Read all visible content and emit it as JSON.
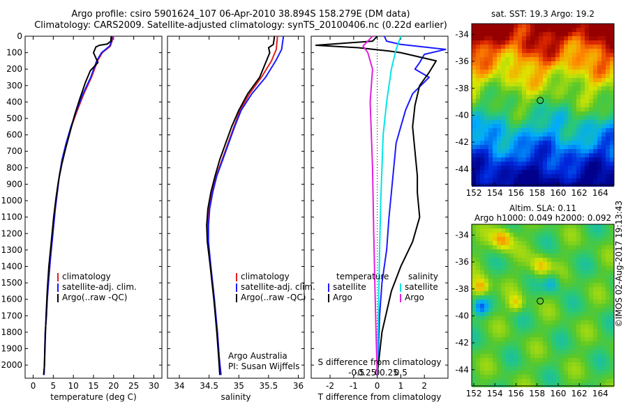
{
  "header": {
    "title_line1": "Argo profile: csiro 5901624_107 06-Apr-2010 38.894S 158.279E (DM data)",
    "title_line2": "Climatology: CARS2009. Satellite-adjusted climatology: synTS_20100406.nc (0.22d earlier)"
  },
  "colors": {
    "climatology": "#e02020",
    "satellite": "#1a1aff",
    "argo": "#000000",
    "sat_salinity": "#00e5e5",
    "argo_salinity": "#e020e0"
  },
  "panels": {
    "temperature": {
      "xlabel": "temperature (deg C)",
      "legend": [
        "climatology",
        "satellite-adj. clim.",
        "Argo(..raw -QC)"
      ]
    },
    "salinity": {
      "xlabel": "salinity",
      "legend": [
        "climatology",
        "satellite-adj. clim.",
        "Argo(..raw -QC)"
      ],
      "credit_line1": "Argo Australia",
      "credit_line2": "PI: Susan Wijffels"
    },
    "difference": {
      "top_label": "S difference from climatology",
      "xlabel": "T difference from climatology",
      "legend_temperature": {
        "title": "temperature",
        "items": [
          "satellite",
          "Argo"
        ]
      },
      "legend_salinity": {
        "title": "salinity",
        "items": [
          "satellite",
          "Argo"
        ]
      }
    }
  },
  "maps": {
    "sst": {
      "title": "sat. SST: 19.3 Argo: 19.2",
      "marker_lat": -38.9,
      "marker_lon": 158.3
    },
    "sla": {
      "title_line1": "Altim. SLA: 0.11",
      "title_line2": "Argo h1000: 0.049 h2000: 0.092",
      "marker_lat": -38.9,
      "marker_lon": 158.3
    },
    "lon_ticks": [
      "152",
      "154",
      "156",
      "158",
      "160",
      "162",
      "164"
    ],
    "lat_ticks": [
      "-34",
      "-36",
      "-38",
      "-40",
      "-42",
      "-44"
    ]
  },
  "stamp": "©IMOS 02-Aug-2017 19:13:43",
  "chart_data": [
    {
      "type": "line",
      "panel": "temperature",
      "ylabel": "",
      "xlabel": "temperature (deg C)",
      "xlim": [
        -2,
        32
      ],
      "ylim": [
        2080,
        0
      ],
      "y_inverted": true,
      "x_ticks": [
        "0",
        "5",
        "10",
        "15",
        "20",
        "25",
        "30"
      ],
      "x_tick_values": [
        0,
        5,
        10,
        15,
        20,
        25,
        30
      ],
      "y_ticks": [
        "0",
        "100",
        "200",
        "300",
        "400",
        "500",
        "600",
        "700",
        "800",
        "900",
        "1000",
        "1100",
        "1200",
        "1300",
        "1400",
        "1500",
        "1600",
        "1700",
        "1800",
        "1900",
        "2000"
      ],
      "series": [
        {
          "name": "climatology",
          "color": "#e02020",
          "x": [
            20.0,
            19.6,
            19.2,
            17.2,
            16.0,
            14.5,
            12.6,
            11.0,
            9.5,
            8.3,
            7.2,
            6.5,
            6.0,
            5.5,
            4.9,
            4.3,
            3.8,
            3.5,
            3.3,
            3.0,
            2.9,
            2.8,
            2.7
          ],
          "y": [
            0,
            30,
            60,
            100,
            150,
            250,
            350,
            450,
            550,
            650,
            750,
            850,
            950,
            1050,
            1200,
            1350,
            1500,
            1600,
            1700,
            1800,
            1900,
            2000,
            2060
          ]
        },
        {
          "name": "satellite-adj. clim.",
          "color": "#1a1aff",
          "x": [
            19.6,
            19.5,
            19.0,
            17.0,
            15.8,
            14.3,
            12.4,
            10.8,
            9.4,
            8.2,
            7.2,
            6.5,
            6.0,
            5.5,
            4.9,
            4.3,
            3.8,
            3.5,
            3.3,
            3.0,
            2.9,
            2.8,
            2.7
          ],
          "y": [
            0,
            30,
            60,
            100,
            150,
            250,
            350,
            450,
            550,
            650,
            750,
            850,
            950,
            1050,
            1200,
            1350,
            1500,
            1600,
            1700,
            1800,
            1900,
            2000,
            2060
          ]
        },
        {
          "name": "Argo(..raw -QC)",
          "color": "#000000",
          "x": [
            19.4,
            19.3,
            18.4,
            16.5,
            15.6,
            15.0,
            16.1,
            14.2,
            13.0,
            11.6,
            10.3,
            9.2,
            8.1,
            7.1,
            6.3,
            5.7,
            5.1,
            4.5,
            3.9,
            3.5,
            3.2,
            3.0,
            2.8,
            2.6
          ],
          "y": [
            0,
            30,
            48,
            55,
            65,
            100,
            160,
            210,
            280,
            380,
            480,
            580,
            680,
            780,
            880,
            980,
            1100,
            1250,
            1400,
            1550,
            1700,
            1850,
            2000,
            2060
          ]
        }
      ]
    },
    {
      "type": "line",
      "panel": "salinity",
      "xlabel": "salinity",
      "xlim": [
        33.8,
        36.1
      ],
      "ylim": [
        2080,
        0
      ],
      "y_inverted": true,
      "x_ticks": [
        "34",
        "34.5",
        "35",
        "35.5",
        "36"
      ],
      "x_tick_values": [
        34,
        34.5,
        35,
        35.5,
        36
      ],
      "series": [
        {
          "name": "climatology",
          "color": "#e02020",
          "x": [
            35.65,
            35.63,
            35.55,
            35.38,
            35.18,
            35.02,
            34.92,
            34.82,
            34.72,
            34.62,
            34.55,
            34.5,
            34.48,
            34.48,
            34.52,
            34.58,
            34.64,
            34.67,
            34.7
          ],
          "y": [
            0,
            80,
            150,
            250,
            350,
            450,
            550,
            650,
            750,
            850,
            950,
            1050,
            1150,
            1250,
            1400,
            1600,
            1800,
            1950,
            2060
          ]
        },
        {
          "name": "satellite-adj. clim.",
          "color": "#1a1aff",
          "x": [
            35.75,
            35.72,
            35.62,
            35.45,
            35.22,
            35.04,
            34.93,
            34.83,
            34.73,
            34.63,
            34.56,
            34.51,
            34.49,
            34.49,
            34.53,
            34.59,
            34.64,
            34.67,
            34.7
          ],
          "y": [
            0,
            80,
            150,
            250,
            350,
            450,
            550,
            650,
            750,
            850,
            950,
            1050,
            1150,
            1250,
            1400,
            1600,
            1800,
            1950,
            2060
          ]
        },
        {
          "name": "Argo(..raw -QC)",
          "color": "#000000",
          "x": [
            35.6,
            35.58,
            35.5,
            35.52,
            35.35,
            35.15,
            35.0,
            34.88,
            34.78,
            34.68,
            34.6,
            34.53,
            34.48,
            34.46,
            34.47,
            34.52,
            34.58,
            34.63,
            34.66,
            34.68
          ],
          "y": [
            0,
            50,
            70,
            100,
            250,
            350,
            450,
            550,
            650,
            750,
            850,
            950,
            1050,
            1150,
            1250,
            1400,
            1600,
            1800,
            1950,
            2060
          ]
        }
      ]
    },
    {
      "type": "line",
      "panel": "difference",
      "xlabel": "T difference from climatology",
      "top_label": "S difference from climatology",
      "xlim": [
        -2.8,
        3.0
      ],
      "ylim": [
        2080,
        0
      ],
      "y_inverted": true,
      "x_ticks": [
        "-2",
        "-1",
        "0",
        "1",
        "2"
      ],
      "x_tick_values": [
        -2,
        -1,
        0,
        1,
        2
      ],
      "s_ticks": [
        "-0.5",
        "-0.25",
        "0",
        "0.25",
        "0.5"
      ],
      "s_tick_values_as_t": [
        -2,
        -1,
        0,
        1,
        2
      ],
      "series": [
        {
          "name": "temperature satellite",
          "color": "#1a1aff",
          "x": [
            0.3,
            0.4,
            1.0,
            2.9,
            2.0,
            1.8,
            1.6,
            2.2,
            1.5,
            1.2,
            1.0,
            0.8,
            0.7,
            0.6,
            0.5,
            0.4,
            0.2,
            0.1,
            0.05,
            0.0
          ],
          "y": [
            0,
            30,
            50,
            80,
            110,
            160,
            200,
            250,
            350,
            450,
            550,
            650,
            800,
            950,
            1100,
            1300,
            1500,
            1700,
            1900,
            2060
          ]
        },
        {
          "name": "temperature Argo",
          "color": "#000000",
          "x": [
            0.0,
            -0.2,
            -2.6,
            -0.8,
            0.5,
            1.0,
            2.5,
            2.2,
            1.8,
            1.6,
            1.5,
            1.6,
            1.7,
            1.7,
            1.8,
            1.5,
            1.0,
            0.6,
            0.2,
            0.0
          ],
          "y": [
            0,
            30,
            55,
            70,
            90,
            100,
            150,
            220,
            300,
            420,
            550,
            700,
            850,
            950,
            1100,
            1250,
            1400,
            1550,
            1800,
            2060
          ]
        },
        {
          "name": "salinity satellite",
          "color": "#00e5e5",
          "x": [
            1.0,
            0.8,
            0.6,
            0.4,
            0.25,
            0.2,
            0.15,
            0.1,
            0.05,
            0.0
          ],
          "y": [
            0,
            80,
            200,
            400,
            600,
            800,
            1000,
            1300,
            1700,
            2060
          ]
        },
        {
          "name": "salinity Argo",
          "color": "#e020e0",
          "x": [
            -0.2,
            -0.6,
            -0.4,
            -0.2,
            -0.3,
            -0.2,
            -0.15,
            -0.1,
            -0.05,
            0.0
          ],
          "y": [
            0,
            60,
            100,
            200,
            400,
            800,
            1200,
            1500,
            1800,
            2060
          ]
        }
      ]
    }
  ]
}
